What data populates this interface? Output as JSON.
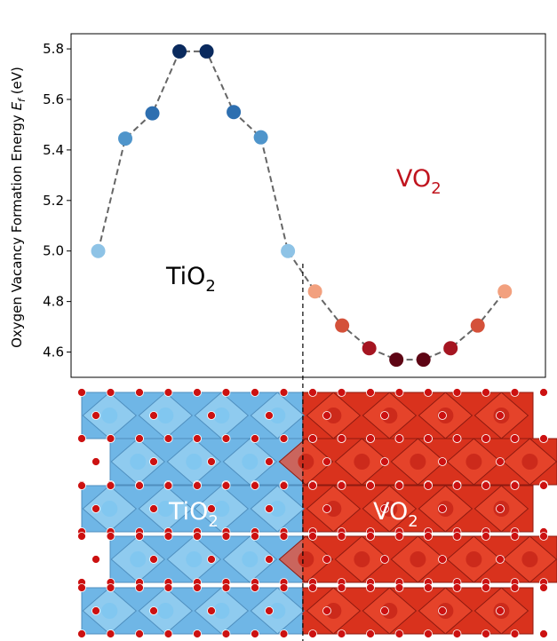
{
  "chart_data": {
    "type": "scatter",
    "ylabel_text": "Oxygen Vacancy Formation Energy ",
    "ylabel_symbol": "E",
    "ylabel_sub": "f",
    "ylabel_unit": " (eV)",
    "ylim": [
      4.5,
      5.86
    ],
    "xlim": [
      0,
      17.5
    ],
    "yticks": [
      "4.6",
      "4.8",
      "5.0",
      "5.2",
      "5.4",
      "5.6",
      "5.8"
    ],
    "grid": false,
    "series": [
      {
        "points": [
          {
            "x": 1,
            "y": 5.0,
            "color": "#8ec3e6"
          },
          {
            "x": 2,
            "y": 5.445,
            "color": "#4f95cb"
          },
          {
            "x": 3,
            "y": 5.545,
            "color": "#2e6fb0"
          },
          {
            "x": 4,
            "y": 5.79,
            "color": "#0a2a5e"
          },
          {
            "x": 5,
            "y": 5.79,
            "color": "#0a2a5e"
          },
          {
            "x": 6,
            "y": 5.55,
            "color": "#2e6fb0"
          },
          {
            "x": 7,
            "y": 5.45,
            "color": "#4f95cb"
          },
          {
            "x": 8,
            "y": 5.0,
            "color": "#8ec3e6"
          }
        ]
      },
      {
        "points": [
          {
            "x": 9,
            "y": 4.84,
            "color": "#f2a07e"
          },
          {
            "x": 10,
            "y": 4.705,
            "color": "#d4513a"
          },
          {
            "x": 11,
            "y": 4.615,
            "color": "#a51521"
          },
          {
            "x": 12,
            "y": 4.57,
            "color": "#5e0514"
          },
          {
            "x": 13,
            "y": 4.57,
            "color": "#5e0514"
          },
          {
            "x": 14,
            "y": 4.615,
            "color": "#a51521"
          },
          {
            "x": 15,
            "y": 4.705,
            "color": "#d4513a"
          },
          {
            "x": 16,
            "y": 4.84,
            "color": "#f2a07e"
          }
        ]
      }
    ],
    "annotations": {
      "tio2": {
        "main": "TiO",
        "sub": "2"
      },
      "vo2": {
        "main": "VO",
        "sub": "2"
      }
    },
    "interface_x": 8.55
  },
  "structure": {
    "tio2_label": {
      "main": "TiO",
      "sub": "2"
    },
    "vo2_label": {
      "main": "VO",
      "sub": "2"
    }
  },
  "colors": {
    "tio2_poly": "#6fb6e6",
    "tio2_poly_dark": "#4f8fbf",
    "vo2_poly": "#d9321d",
    "vo2_poly_dark": "#8e1a10",
    "oxygen": "#cc1111",
    "vo2_text": "#c0141e",
    "line": "#666666"
  }
}
